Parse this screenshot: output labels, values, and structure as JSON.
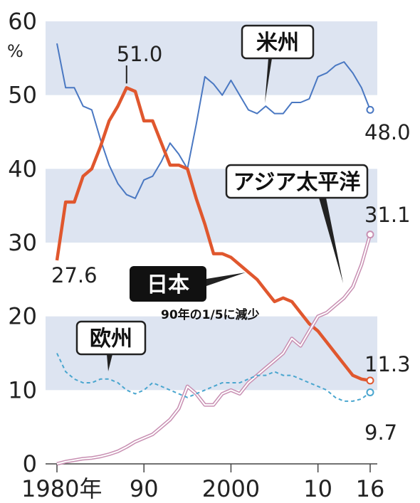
{
  "chart_data": {
    "type": "line",
    "y_unit": "%",
    "ylim": [
      0,
      60
    ],
    "y_ticks": [
      "0",
      "10",
      "20",
      "30",
      "40",
      "50",
      "60"
    ],
    "x_tick_labels": [
      "1980年",
      "90",
      "2000",
      "10",
      "16"
    ],
    "x_tick_values": [
      1980,
      1990,
      2000,
      2010,
      2016
    ],
    "xlim": [
      1980,
      2016
    ],
    "annotation": "90年の1/5に減少",
    "series": [
      {
        "name": "米州",
        "color": "#4a78c2",
        "style": "solid-thin",
        "x": [
          1980,
          1981,
          1982,
          1983,
          1984,
          1985,
          1986,
          1987,
          1988,
          1989,
          1990,
          1991,
          1992,
          1993,
          1994,
          1995,
          1996,
          1997,
          1998,
          1999,
          2000,
          2001,
          2002,
          2003,
          2004,
          2005,
          2006,
          2007,
          2008,
          2009,
          2010,
          2011,
          2012,
          2013,
          2014,
          2015,
          2016
        ],
        "values": [
          57.0,
          51.0,
          51.0,
          48.5,
          48.0,
          44.0,
          40.5,
          38.0,
          36.5,
          36.0,
          38.5,
          39.0,
          41.0,
          43.5,
          42.0,
          40.0,
          46.0,
          52.5,
          51.5,
          50.0,
          52.0,
          50.0,
          48.0,
          47.5,
          48.5,
          47.5,
          47.5,
          49.0,
          49.0,
          49.5,
          52.5,
          53.0,
          54.0,
          54.5,
          53.0,
          51.0,
          48.0
        ],
        "end_label": "48.0"
      },
      {
        "name": "日本",
        "color": "#e0572e",
        "style": "solid-thick",
        "x": [
          1980,
          1981,
          1982,
          1983,
          1984,
          1985,
          1986,
          1987,
          1988,
          1989,
          1990,
          1991,
          1992,
          1993,
          1994,
          1995,
          1996,
          1997,
          1998,
          1999,
          2000,
          2001,
          2002,
          2003,
          2004,
          2005,
          2006,
          2007,
          2008,
          2009,
          2010,
          2011,
          2012,
          2013,
          2014,
          2015,
          2016
        ],
        "values": [
          27.6,
          35.5,
          35.5,
          39.0,
          40.0,
          43.0,
          46.5,
          48.5,
          51.0,
          50.5,
          46.5,
          46.5,
          43.5,
          40.5,
          40.5,
          40.0,
          36.0,
          32.5,
          28.5,
          28.5,
          28.0,
          27.0,
          26.0,
          25.0,
          23.5,
          22.0,
          22.5,
          22.0,
          20.5,
          19.0,
          18.0,
          16.5,
          15.0,
          13.5,
          12.0,
          11.5,
          11.3
        ],
        "start_label": "27.6",
        "peak_label": "51.0",
        "end_label": "11.3"
      },
      {
        "name": "アジア太平洋",
        "color": "#c88fb2",
        "style": "double-line",
        "x": [
          1980,
          1981,
          1982,
          1983,
          1984,
          1985,
          1986,
          1987,
          1988,
          1989,
          1990,
          1991,
          1992,
          1993,
          1994,
          1995,
          1996,
          1997,
          1998,
          1999,
          2000,
          2001,
          2002,
          2003,
          2004,
          2005,
          2006,
          2007,
          2008,
          2009,
          2010,
          2011,
          2012,
          2013,
          2014,
          2015,
          2016
        ],
        "values": [
          0.0,
          0.3,
          0.5,
          0.7,
          0.8,
          1.0,
          1.3,
          1.7,
          2.3,
          3.0,
          3.5,
          4.0,
          5.0,
          6.0,
          7.5,
          10.5,
          9.5,
          8.0,
          8.0,
          9.5,
          10.0,
          9.5,
          11.0,
          12.0,
          13.0,
          14.0,
          15.0,
          17.0,
          16.0,
          18.0,
          20.0,
          20.5,
          21.5,
          22.5,
          24.0,
          27.0,
          31.1
        ],
        "end_label": "31.1"
      },
      {
        "name": "欧州",
        "color": "#4aa6cf",
        "style": "dashed",
        "x": [
          1980,
          1981,
          1982,
          1983,
          1984,
          1985,
          1986,
          1987,
          1988,
          1989,
          1990,
          1991,
          1992,
          1993,
          1994,
          1995,
          1996,
          1997,
          1998,
          1999,
          2000,
          2001,
          2002,
          2003,
          2004,
          2005,
          2006,
          2007,
          2008,
          2009,
          2010,
          2011,
          2012,
          2013,
          2014,
          2015,
          2016
        ],
        "values": [
          15.0,
          12.5,
          11.5,
          11.0,
          11.0,
          11.5,
          11.5,
          11.0,
          10.0,
          9.5,
          10.0,
          11.0,
          10.5,
          10.0,
          9.5,
          9.0,
          9.5,
          10.0,
          10.5,
          11.0,
          11.0,
          11.0,
          11.5,
          12.0,
          12.0,
          12.5,
          12.0,
          12.0,
          11.5,
          11.0,
          10.5,
          10.0,
          9.0,
          8.5,
          8.5,
          8.8,
          9.7
        ],
        "end_label": "9.7"
      }
    ]
  }
}
